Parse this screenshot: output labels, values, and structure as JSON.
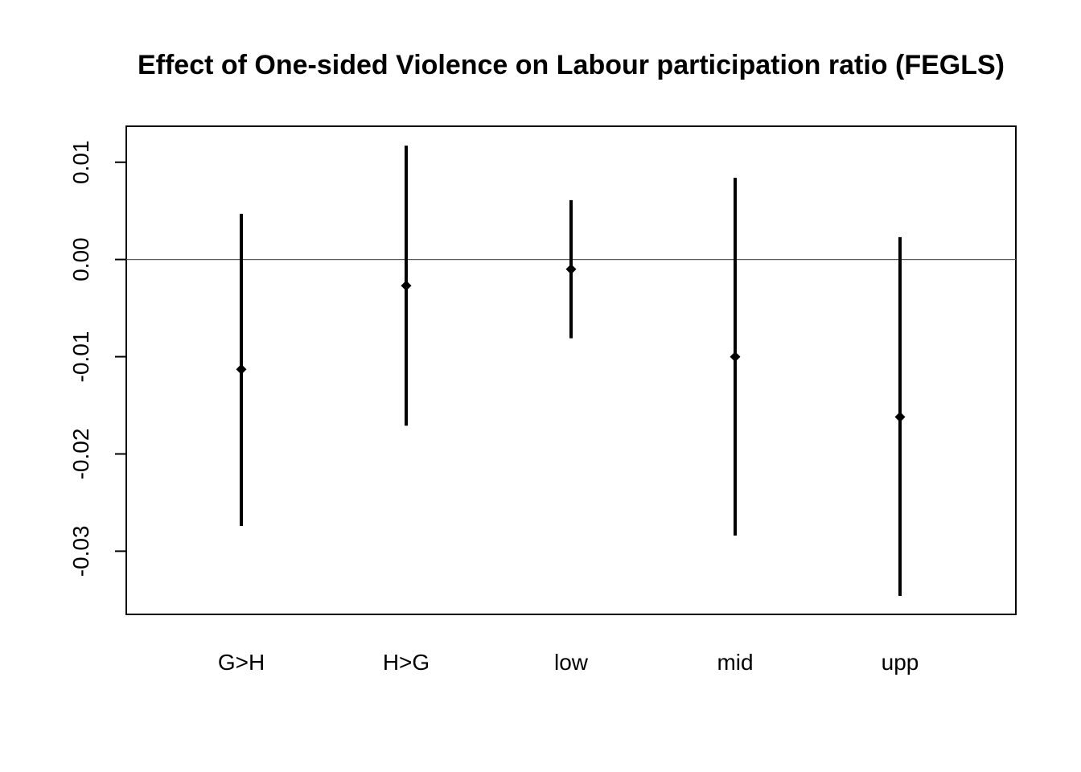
{
  "chart_data": {
    "type": "errorbar",
    "title": "Effect of One-sided Violence on Labour participation ratio (FEGLS)",
    "xlabel": "",
    "ylabel": "",
    "categories": [
      "G>H",
      "H>G",
      "low",
      "mid",
      "upp"
    ],
    "estimates": [
      -0.0113,
      -0.0027,
      -0.001,
      -0.01,
      -0.0162
    ],
    "lower": [
      -0.0274,
      -0.0171,
      -0.0081,
      -0.0284,
      -0.0346
    ],
    "upper": [
      0.0047,
      0.0117,
      0.0061,
      0.0084,
      0.0023
    ],
    "ylim": [
      -0.0365,
      0.0137
    ],
    "yticks": [
      0.01,
      0.0,
      -0.01,
      -0.02,
      -0.03
    ],
    "ytick_labels": [
      "0.01",
      "0.00",
      "-0.01",
      "-0.02",
      "-0.03"
    ],
    "reference_line": 0.0,
    "grid": false,
    "colors": {
      "marks": "#000000",
      "reference_line": "#555555",
      "frame": "#000000"
    }
  }
}
